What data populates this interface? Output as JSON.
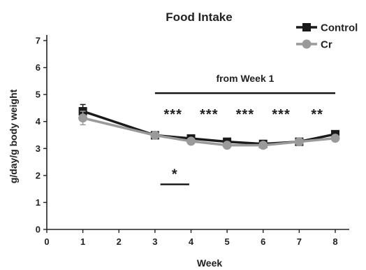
{
  "chart_data": {
    "type": "line",
    "title": "Food Intake",
    "xlabel": "Week",
    "ylabel": "g/day/g body weight",
    "xlim": [
      0,
      8
    ],
    "ylim": [
      0,
      7
    ],
    "xticks": [
      0,
      1,
      2,
      3,
      4,
      5,
      6,
      7,
      8
    ],
    "yticks": [
      0,
      1,
      2,
      3,
      4,
      5,
      6,
      7
    ],
    "grid": false,
    "legend_position": "top-right",
    "series": [
      {
        "name": "Control",
        "color": "#1a1a1a",
        "marker": "square",
        "x": [
          1,
          3,
          4,
          5,
          6,
          7,
          8
        ],
        "y": [
          4.38,
          3.49,
          3.37,
          3.25,
          3.17,
          3.25,
          3.53
        ],
        "error": [
          0.25,
          0.06,
          0.06,
          0.06,
          0.05,
          0.05,
          0.08
        ]
      },
      {
        "name": "Cr",
        "color": "#9a9a9a",
        "marker": "circle",
        "x": [
          1,
          3,
          4,
          5,
          6,
          7,
          8
        ],
        "y": [
          4.13,
          3.49,
          3.27,
          3.12,
          3.12,
          3.25,
          3.38
        ],
        "error": [
          0.25,
          0.05,
          0.05,
          0.05,
          0.05,
          0.05,
          0.05
        ]
      }
    ],
    "annotations": {
      "bracket_label": "from Week 1",
      "bracket_x": [
        3,
        8
      ],
      "bracket_y": 5.05,
      "stars_y": 4.35,
      "stars": [
        {
          "x": 3.5,
          "label": "***"
        },
        {
          "x": 4.5,
          "label": "***"
        },
        {
          "x": 5.5,
          "label": "***"
        },
        {
          "x": 6.5,
          "label": "***"
        },
        {
          "x": 7.5,
          "label": "**"
        }
      ],
      "small_sig": {
        "x": [
          3.15,
          3.95
        ],
        "y": 1.67,
        "label": "*"
      }
    }
  }
}
